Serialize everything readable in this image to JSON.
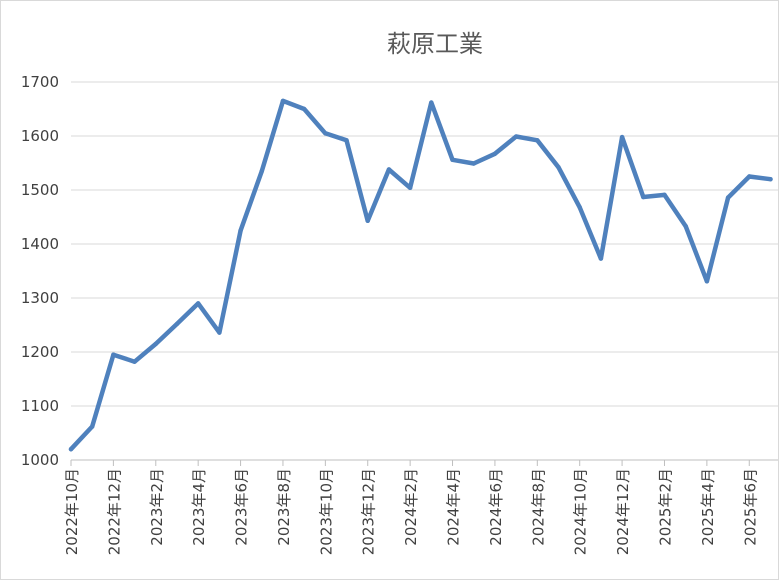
{
  "chart_data": {
    "type": "line",
    "title": "萩原工業",
    "xlabel": "",
    "ylabel": "",
    "ylim": [
      1000,
      1700
    ],
    "yticks": [
      1000,
      1100,
      1200,
      1300,
      1400,
      1500,
      1600,
      1700
    ],
    "grid": true,
    "legend": "none",
    "line_color": "#4f81bd",
    "categories": [
      "2022年10月",
      "2022年11月",
      "2022年12月",
      "2023年1月",
      "2023年2月",
      "2023年3月",
      "2023年4月",
      "2023年5月",
      "2023年6月",
      "2023年7月",
      "2023年8月",
      "2023年9月",
      "2023年10月",
      "2023年11月",
      "2023年12月",
      "2024年1月",
      "2024年2月",
      "2024年3月",
      "2024年4月",
      "2024年5月",
      "2024年6月",
      "2024年7月",
      "2024年8月",
      "2024年9月",
      "2024年10月",
      "2024年11月",
      "2024年12月",
      "2025年1月",
      "2025年2月",
      "2025年3月",
      "2025年4月",
      "2025年5月",
      "2025年6月",
      "2025年7月"
    ],
    "xtick_labels": [
      "2022年10月",
      "2022年12月",
      "2023年2月",
      "2023年4月",
      "2023年6月",
      "2023年8月",
      "2023年10月",
      "2023年12月",
      "2024年2月",
      "2024年4月",
      "2024年6月",
      "2024年8月",
      "2024年10月",
      "2024年12月",
      "2025年2月",
      "2025年4月",
      "2025年6月"
    ],
    "series": [
      {
        "values": [
          1020,
          1062,
          1195,
          1182,
          1215,
          1252,
          1290,
          1236,
          1425,
          1535,
          1665,
          1650,
          1605,
          1592,
          1443,
          1538,
          1504,
          1662,
          1556,
          1549,
          1567,
          1599,
          1592,
          1542,
          1468,
          1373,
          1598,
          1487,
          1491,
          1433,
          1331,
          1486,
          1525,
          1520
        ]
      }
    ]
  }
}
